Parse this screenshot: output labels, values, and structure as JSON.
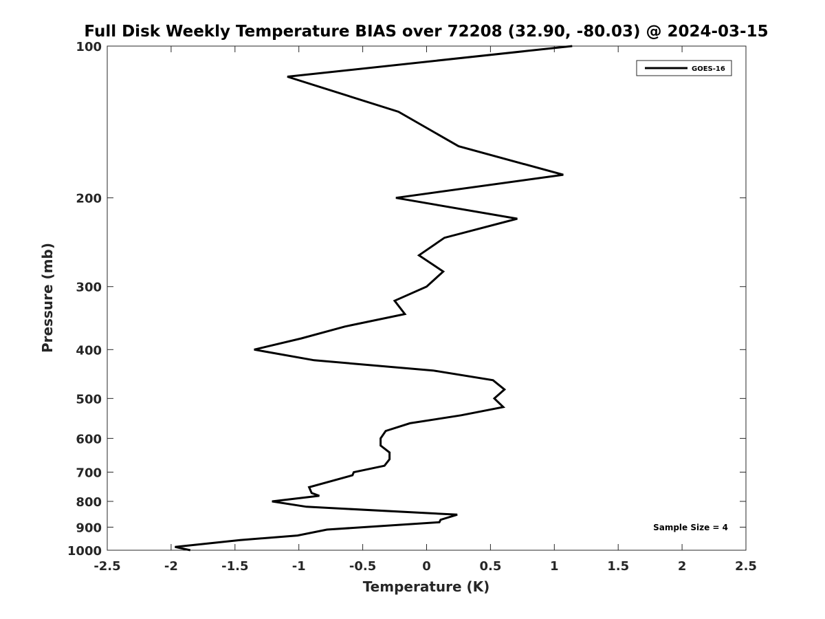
{
  "chart_data": {
    "type": "line",
    "title": "Full Disk Weekly Temperature BIAS over 72208 (32.90, -80.03) @ 2024-03-15",
    "xlabel": "Temperature (K)",
    "ylabel": "Pressure (mb)",
    "xlim": [
      -2.5,
      2.5
    ],
    "ylim": [
      1000,
      100
    ],
    "yscale": "log",
    "x_ticks": [
      "-2.5",
      "-2",
      "-1.5",
      "-1",
      "-0.5",
      "0",
      "0.5",
      "1",
      "1.5",
      "2",
      "2.5"
    ],
    "y_ticks": [
      "100",
      "200",
      "300",
      "400",
      "500",
      "600",
      "700",
      "800",
      "900",
      "1000"
    ],
    "grid": false,
    "legend_position": "top-right",
    "series": [
      {
        "name": "GOES-16",
        "color": "#000000",
        "points": [
          {
            "x": 1.14,
            "p": 100
          },
          {
            "x": -1.09,
            "p": 115
          },
          {
            "x": -0.22,
            "p": 135
          },
          {
            "x": 0.25,
            "p": 158
          },
          {
            "x": 1.07,
            "p": 180
          },
          {
            "x": -0.24,
            "p": 200
          },
          {
            "x": 0.71,
            "p": 220
          },
          {
            "x": 0.14,
            "p": 240
          },
          {
            "x": -0.06,
            "p": 260
          },
          {
            "x": 0.13,
            "p": 280
          },
          {
            "x": 0.0,
            "p": 300
          },
          {
            "x": -0.25,
            "p": 320
          },
          {
            "x": -0.17,
            "p": 340
          },
          {
            "x": -0.64,
            "p": 360
          },
          {
            "x": -0.98,
            "p": 380
          },
          {
            "x": -1.35,
            "p": 400
          },
          {
            "x": -0.88,
            "p": 420
          },
          {
            "x": 0.05,
            "p": 440
          },
          {
            "x": 0.52,
            "p": 460
          },
          {
            "x": 0.61,
            "p": 480
          },
          {
            "x": 0.53,
            "p": 500
          },
          {
            "x": 0.6,
            "p": 520
          },
          {
            "x": 0.27,
            "p": 540
          },
          {
            "x": -0.13,
            "p": 560
          },
          {
            "x": -0.32,
            "p": 580
          },
          {
            "x": -0.36,
            "p": 600
          },
          {
            "x": -0.36,
            "p": 620
          },
          {
            "x": -0.29,
            "p": 640
          },
          {
            "x": -0.29,
            "p": 660
          },
          {
            "x": -0.33,
            "p": 680
          },
          {
            "x": -0.57,
            "p": 700
          },
          {
            "x": -0.58,
            "p": 710
          },
          {
            "x": -0.92,
            "p": 750
          },
          {
            "x": -0.9,
            "p": 770
          },
          {
            "x": -0.84,
            "p": 780
          },
          {
            "x": -1.21,
            "p": 800
          },
          {
            "x": -0.94,
            "p": 820
          },
          {
            "x": 0.24,
            "p": 850
          },
          {
            "x": 0.11,
            "p": 870
          },
          {
            "x": 0.1,
            "p": 880
          },
          {
            "x": -0.78,
            "p": 910
          },
          {
            "x": -1.01,
            "p": 935
          },
          {
            "x": -1.46,
            "p": 955
          },
          {
            "x": -1.97,
            "p": 985
          },
          {
            "x": -1.85,
            "p": 1000
          }
        ]
      }
    ],
    "annotations": [
      {
        "text": "Sample Size = 4",
        "position": "bottom-right"
      }
    ]
  }
}
